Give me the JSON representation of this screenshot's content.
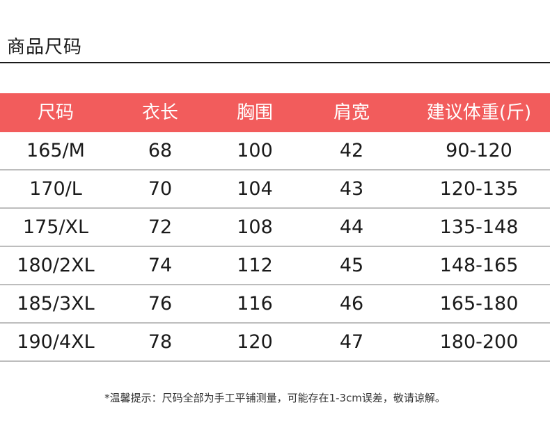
{
  "title": "商品尺码",
  "table": {
    "headers": [
      "尺码",
      "衣长",
      "胸围",
      "肩宽",
      "建议体重(斤)"
    ],
    "rows": [
      [
        "165/M",
        "68",
        "100",
        "42",
        "90-120"
      ],
      [
        "170/L",
        "70",
        "104",
        "43",
        "120-135"
      ],
      [
        "175/XL",
        "72",
        "108",
        "44",
        "135-148"
      ],
      [
        "180/2XL",
        "74",
        "112",
        "45",
        "148-165"
      ],
      [
        "185/3XL",
        "76",
        "116",
        "46",
        "165-180"
      ],
      [
        "190/4XL",
        "78",
        "120",
        "47",
        "180-200"
      ]
    ]
  },
  "footnote": "*温馨提示：尺码全部为手工平铺测量，可能存在1-3cm误差，敬请谅解。",
  "colors": {
    "header_bg": "#f25c5c",
    "header_text": "#ffffff",
    "row_divider": "#bdbdbd"
  }
}
